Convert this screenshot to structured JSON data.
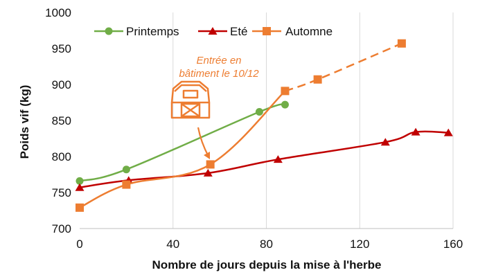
{
  "chart_data": {
    "type": "line",
    "xlabel": "Nombre de jours depuis la mise à l'herbe",
    "ylabel": "Poids vif (kg)",
    "xlim": [
      0,
      160
    ],
    "ylim": [
      700,
      1000
    ],
    "x_ticks": [
      0,
      40,
      80,
      120,
      160
    ],
    "y_ticks": [
      700,
      750,
      800,
      850,
      900,
      950,
      1000
    ],
    "grid": "vertical",
    "legend_position": "top-left",
    "series": [
      {
        "name": "Printemps",
        "color": "#70AD47",
        "marker": "circle",
        "style": "solid",
        "points": [
          [
            0,
            766
          ],
          [
            20,
            782
          ],
          [
            77,
            862
          ],
          [
            88,
            872
          ]
        ]
      },
      {
        "name": "Eté",
        "color": "#C00000",
        "marker": "triangle",
        "style": "solid",
        "points": [
          [
            0,
            757
          ],
          [
            21,
            767
          ],
          [
            55,
            777
          ],
          [
            85,
            796
          ],
          [
            131,
            820
          ],
          [
            144,
            834
          ],
          [
            158,
            833
          ]
        ]
      },
      {
        "name": "Automne",
        "color": "#ED7D31",
        "marker": "square",
        "style": "solid-then-dashed",
        "dashed_from_index": 3,
        "points": [
          [
            0,
            729
          ],
          [
            20,
            761
          ],
          [
            56,
            789
          ],
          [
            88,
            891
          ],
          [
            102,
            907
          ],
          [
            138,
            957
          ]
        ]
      }
    ],
    "annotation": {
      "lines": [
        "Entrée en",
        "bâtiment le 10/12"
      ],
      "icon": "barn-icon",
      "points_to": [
        56,
        789
      ],
      "color": "#ED7D31"
    }
  }
}
